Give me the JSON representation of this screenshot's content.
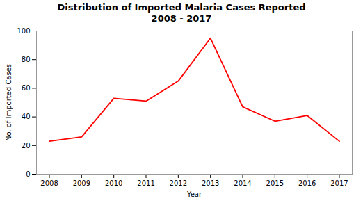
{
  "chart_data": {
    "type": "line",
    "title": "Distribution of Imported Malaria Cases Reported\n2008 - 2017",
    "xlabel": "Year",
    "ylabel": "No. of Imported Cases",
    "x": [
      2008,
      2009,
      2010,
      2011,
      2012,
      2013,
      2014,
      2015,
      2016,
      2017
    ],
    "values": [
      23,
      26,
      53,
      51,
      65,
      95,
      47,
      37,
      41,
      23
    ],
    "color": "#ff0000",
    "xlim": [
      2007.6,
      2017.4
    ],
    "xticks": [
      2008,
      2009,
      2010,
      2011,
      2012,
      2013,
      2014,
      2015,
      2016,
      2017
    ],
    "ylim": [
      0,
      100
    ],
    "yticks": [
      0,
      20,
      40,
      60,
      80,
      100
    ],
    "grid": false
  }
}
